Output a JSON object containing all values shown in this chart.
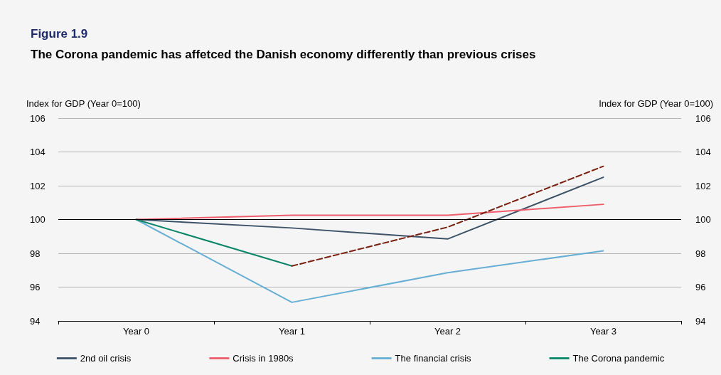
{
  "chart_data": {
    "type": "line",
    "title": "Figure 1.9",
    "subtitle": "The Corona pandemic has affetced the Danish economy differently than previous crises",
    "ylabel": "Index for GDP (Year 0=100)",
    "y2label": "Index for GDP (Year 0=100)",
    "categories": [
      "Year 0",
      "Year 1",
      "Year 2",
      "Year 3"
    ],
    "series": [
      {
        "name": "2nd oil crisis",
        "color": "#3d5266",
        "values": [
          100,
          99.5,
          98.85,
          102.5
        ]
      },
      {
        "name": "Crisis in 1980s",
        "color": "#ee5d6c",
        "values": [
          100,
          100.25,
          100.25,
          100.9
        ]
      },
      {
        "name": "The financial crisis",
        "color": "#66aed4",
        "values": [
          100,
          95.1,
          96.85,
          98.15
        ]
      },
      {
        "name": "The Corona pandemic",
        "color": "#0b8567",
        "values": [
          100,
          97.25,
          null,
          null
        ]
      },
      {
        "color": "#7a1f10",
        "line_style": "dashed",
        "values": [
          null,
          97.25,
          99.55,
          103.15
        ]
      }
    ],
    "ylim": [
      94,
      106
    ],
    "yticks": [
      94,
      96,
      98,
      100,
      102,
      104,
      106
    ],
    "y2lim": [
      94,
      106
    ],
    "y2ticks": [
      94,
      96,
      98,
      100,
      102,
      104,
      106
    ],
    "ref_lines": [
      {
        "axis": "y",
        "value": 100,
        "color": "#000000"
      }
    ],
    "grid": "y",
    "legend": "bottom",
    "marker": "none",
    "line_style": "solid"
  }
}
